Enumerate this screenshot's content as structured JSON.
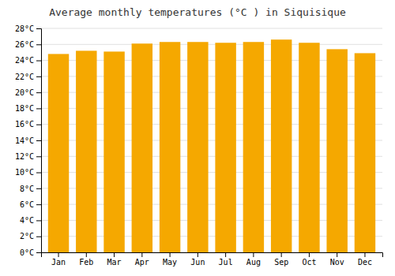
{
  "chart_data": {
    "type": "bar",
    "title": "Average monthly temperatures (°C ) in Siquisique",
    "categories": [
      "Jan",
      "Feb",
      "Mar",
      "Apr",
      "May",
      "Jun",
      "Jul",
      "Aug",
      "Sep",
      "Oct",
      "Nov",
      "Dec"
    ],
    "values": [
      24.8,
      25.2,
      25.1,
      26.1,
      26.3,
      26.3,
      26.2,
      26.3,
      26.6,
      26.2,
      25.4,
      24.9
    ],
    "color": "#F5A800",
    "ylim": [
      0,
      28
    ],
    "yticks": [
      {
        "value": 0,
        "label": "0°C"
      },
      {
        "value": 2,
        "label": "2°C"
      },
      {
        "value": 4,
        "label": "4°C"
      },
      {
        "value": 6,
        "label": "6°C"
      },
      {
        "value": 8,
        "label": "8°C"
      },
      {
        "value": 10,
        "label": "10°C"
      },
      {
        "value": 12,
        "label": "12°C"
      },
      {
        "value": 14,
        "label": "14°C"
      },
      {
        "value": 16,
        "label": "16°C"
      },
      {
        "value": 18,
        "label": "18°C"
      },
      {
        "value": 20,
        "label": "20°C"
      },
      {
        "value": 22,
        "label": "22°C"
      },
      {
        "value": 24,
        "label": "24°C"
      },
      {
        "value": 26,
        "label": "26°C"
      },
      {
        "value": 28,
        "label": "28°C"
      }
    ],
    "grid": true
  }
}
